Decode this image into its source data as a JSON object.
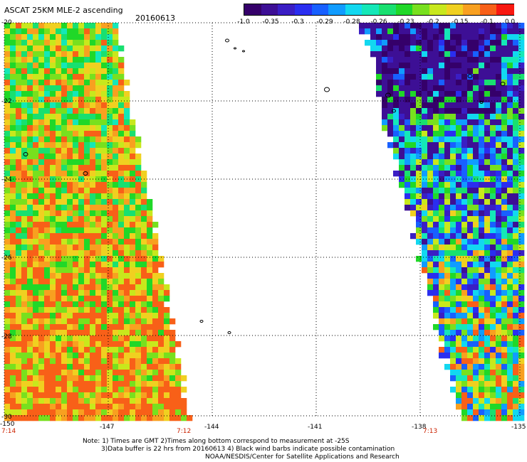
{
  "header": {
    "title": "ASCAT 25KM MLE-2 ascending",
    "date": "20160613"
  },
  "colorbar": {
    "colors": [
      "#35006a",
      "#3d0f95",
      "#3a1ec4",
      "#2a2ef0",
      "#1860ff",
      "#109cff",
      "#12d8f0",
      "#14e8b8",
      "#18e070",
      "#20d828",
      "#78e01e",
      "#c8e81c",
      "#f0d020",
      "#f8a020",
      "#f86018",
      "#f81810"
    ],
    "ticks": [
      "-1.0",
      "-0.35",
      "-0.3",
      "-0.29",
      "-0.28",
      "-0.26",
      "-0.23",
      "-0.2",
      "-0.15",
      "-0.1",
      "0.0"
    ]
  },
  "axes": {
    "x_ticks": [
      "-150",
      "-147",
      "-144",
      "-141",
      "-138",
      "-135"
    ],
    "y_ticks": [
      "-20",
      "-22",
      "-24",
      "-26",
      "-28",
      "-30"
    ],
    "times": [
      "7:14",
      "7:12",
      "7:13"
    ]
  },
  "notes": {
    "line1": "Note: 1) Times are GMT 2)Times along bottom correspond to measurement at -25S",
    "line2": "3)Data buffer is 22 hrs from 20160613 4) Black wind barbs indicate possible contamination",
    "line3": "NOAA/NESDIS/Center for Satellite Applications and Research"
  }
}
